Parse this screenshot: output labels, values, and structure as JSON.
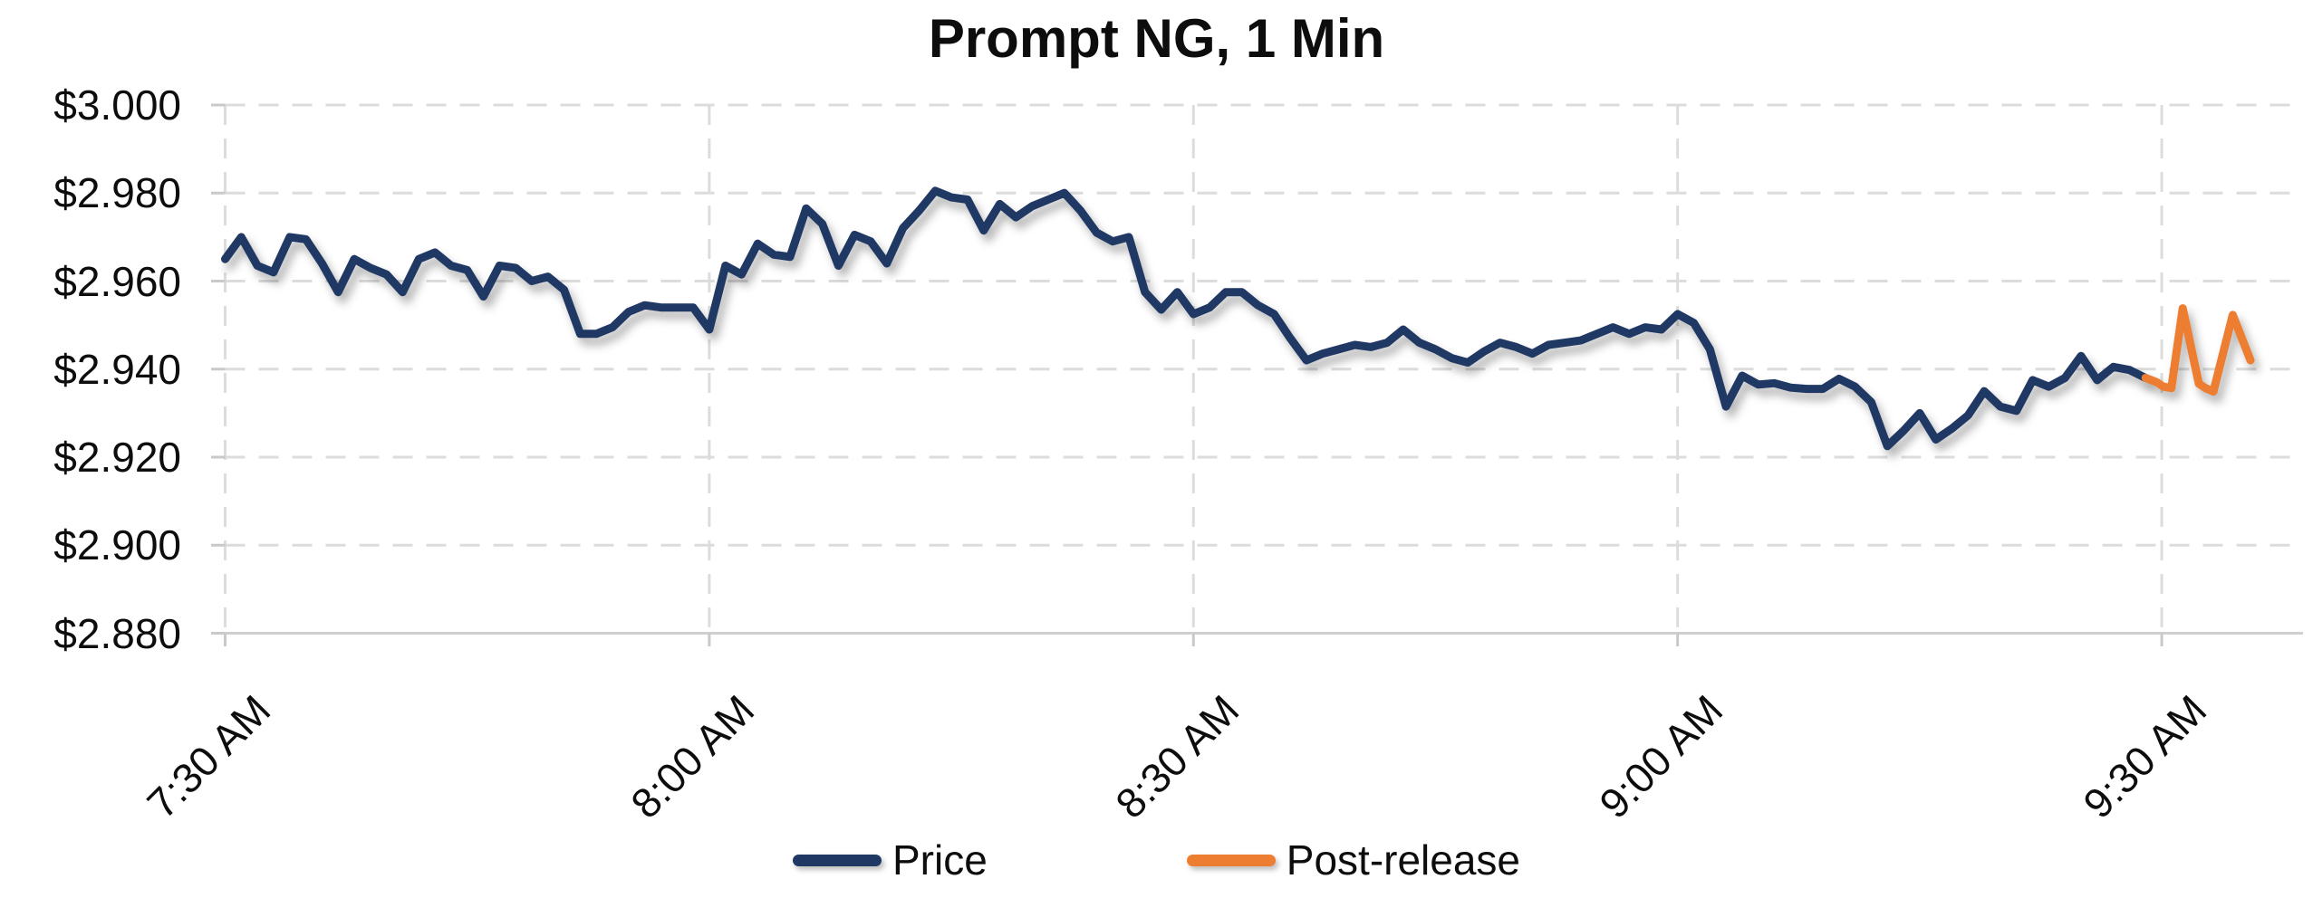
{
  "title": "Prompt NG, 1 Min",
  "legend": [
    {
      "label": "Price",
      "color": "#203864"
    },
    {
      "label": "Post-release",
      "color": "#ED7D31"
    }
  ],
  "chart_data": {
    "type": "line",
    "title": "Prompt NG, 1 Min",
    "xlabel": "",
    "ylabel": "",
    "x_axis": {
      "tick_labels": [
        "7:30 AM",
        "8:00 AM",
        "8:30 AM",
        "9:00 AM",
        "9:30 AM"
      ],
      "tick_minutes": [
        0,
        30,
        60,
        90,
        120
      ],
      "unit": "minutes after 7:30 AM",
      "range_minutes": [
        0,
        128.5
      ]
    },
    "y_axis": {
      "tick_labels": [
        "$3.000",
        "$2.980",
        "$2.960",
        "$2.940",
        "$2.920",
        "$2.900",
        "$2.880"
      ],
      "tick_values": [
        3.0,
        2.98,
        2.96,
        2.94,
        2.92,
        2.9,
        2.88
      ],
      "range": [
        2.88,
        3.0
      ],
      "format": "$#.000"
    },
    "grid": {
      "horizontal": "dashed",
      "vertical": "dashed"
    },
    "legend_position": "bottom",
    "series": [
      {
        "name": "Price",
        "color": "#203864",
        "start_minute": 0,
        "step_minutes": 1,
        "values": [
          2.965,
          2.97,
          2.9635,
          2.962,
          2.97,
          2.9695,
          2.964,
          2.9575,
          2.965,
          2.963,
          2.9615,
          2.9575,
          2.965,
          2.9665,
          2.9635,
          2.9625,
          2.9565,
          2.9635,
          2.963,
          2.96,
          2.961,
          2.958,
          2.948,
          2.948,
          2.9495,
          2.953,
          2.9545,
          2.954,
          2.954,
          2.954,
          2.949,
          2.9635,
          2.9615,
          2.9685,
          2.966,
          2.9655,
          2.9765,
          2.973,
          2.9635,
          2.9705,
          2.969,
          2.964,
          2.972,
          2.976,
          2.9805,
          2.979,
          2.9785,
          2.9715,
          2.9775,
          2.9745,
          2.977,
          2.9785,
          2.98,
          2.976,
          2.971,
          2.969,
          2.97,
          2.9575,
          2.9535,
          2.9575,
          2.9525,
          2.954,
          2.9575,
          2.9575,
          2.9545,
          2.9525,
          2.947,
          2.942,
          2.9435,
          2.9445,
          2.9455,
          2.945,
          2.946,
          2.949,
          2.946,
          2.9445,
          2.9425,
          2.9415,
          2.944,
          2.946,
          2.945,
          2.9435,
          2.9455,
          2.946,
          2.9465,
          2.948,
          2.9495,
          2.948,
          2.9495,
          2.949,
          2.9525,
          2.9505,
          2.9445,
          2.9315,
          2.9385,
          2.9365,
          2.9368,
          2.9358,
          2.9355,
          2.9355,
          2.9378,
          2.936,
          2.9325,
          2.9225,
          2.926,
          2.93,
          2.924,
          2.9265,
          2.9295,
          2.935,
          2.9315,
          2.9305,
          2.9375,
          2.936,
          2.938,
          2.943,
          2.9375,
          2.9405,
          2.9398,
          2.938
        ]
      },
      {
        "name": "Post-release",
        "color": "#ED7D31",
        "points": [
          [
            119.0,
            2.938
          ],
          [
            119.7,
            2.937
          ],
          [
            120.1,
            2.936
          ],
          [
            120.6,
            2.9357
          ],
          [
            121.3,
            2.9538
          ],
          [
            122.3,
            2.9367
          ],
          [
            122.7,
            2.9357
          ],
          [
            123.2,
            2.9349
          ],
          [
            124.4,
            2.9523
          ],
          [
            125.5,
            2.942
          ]
        ]
      }
    ]
  }
}
